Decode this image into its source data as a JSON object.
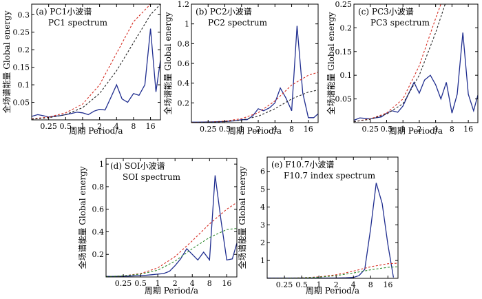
{
  "figure": {
    "xlabel": "周期 Period/a",
    "ylabel": "全场谱能量 Global energy"
  },
  "colors": {
    "frame": "#000000",
    "spectrum": "#1f2d8f",
    "red_dash": "#d62b20",
    "black_dash": "#222222",
    "green_dash": "#2d8a2d"
  },
  "chart_data": [
    {
      "id": "a",
      "type": "line",
      "annotation_1": "(a) PC1小波谱",
      "annotation_2": "PC1 spectrum",
      "x_scale": "log2",
      "xlim": [
        0.125,
        24
      ],
      "ylim": [
        0,
        0.33
      ],
      "x_ticks": [
        0.25,
        0.5,
        1,
        2,
        4,
        8,
        16
      ],
      "x_tick_labels": [
        "0.25",
        "0.5",
        "1",
        "2",
        "4",
        "8",
        "16"
      ],
      "y_ticks": [
        0.05,
        0.1,
        0.15,
        0.2,
        0.25,
        0.3
      ],
      "y_tick_labels": [
        "0.05",
        "0.1",
        "0.15",
        "0.2",
        "0.25",
        "0.3"
      ],
      "series": [
        {
          "style": "solid",
          "color": "#1f2d8f",
          "x": [
            0.125,
            0.16,
            0.2,
            0.25,
            0.31,
            0.4,
            0.5,
            0.63,
            0.8,
            1,
            1.26,
            1.6,
            2,
            2.5,
            3.2,
            4,
            5,
            6.3,
            8,
            10,
            12.7,
            16,
            20,
            24
          ],
          "y": [
            0.01,
            0.015,
            0.012,
            0.008,
            0.01,
            0.012,
            0.015,
            0.018,
            0.022,
            0.02,
            0.015,
            0.025,
            0.03,
            0.028,
            0.065,
            0.1,
            0.06,
            0.05,
            0.075,
            0.07,
            0.1,
            0.26,
            0.08,
            0.17
          ]
        },
        {
          "style": "dashed",
          "color": "#d62b20",
          "x": [
            0.125,
            0.25,
            0.5,
            1,
            2,
            4,
            8,
            16
          ],
          "y": [
            0.003,
            0.008,
            0.02,
            0.045,
            0.1,
            0.19,
            0.28,
            0.33
          ]
        },
        {
          "style": "dashed",
          "color": "#222222",
          "x": [
            0.125,
            0.25,
            0.5,
            1,
            2,
            4,
            8,
            16,
            24
          ],
          "y": [
            0.002,
            0.006,
            0.015,
            0.035,
            0.075,
            0.14,
            0.22,
            0.3,
            0.33
          ]
        }
      ]
    },
    {
      "id": "b",
      "type": "line",
      "annotation_1": "(b) PC2小波谱",
      "annotation_2": "PC2 spectrum",
      "x_scale": "log2",
      "xlim": [
        0.125,
        24
      ],
      "ylim": [
        0,
        1.2
      ],
      "x_ticks": [
        0.25,
        0.5,
        1,
        2,
        4,
        8,
        16
      ],
      "x_tick_labels": [
        "0.25",
        "0.5",
        "1",
        "2",
        "4",
        "8",
        "16"
      ],
      "y_ticks": [
        0.2,
        0.4,
        0.6,
        0.8,
        1,
        1.2
      ],
      "y_tick_labels": [
        "0.2",
        "0.4",
        "0.6",
        "0.8",
        "1",
        "1.2"
      ],
      "series": [
        {
          "style": "solid",
          "color": "#1f2d8f",
          "x": [
            0.125,
            0.16,
            0.2,
            0.25,
            0.31,
            0.4,
            0.5,
            0.63,
            0.8,
            1,
            1.26,
            1.6,
            2,
            2.5,
            3.2,
            4,
            5,
            6.3,
            8,
            10,
            12.7,
            16,
            20,
            24
          ],
          "y": [
            0.005,
            0.005,
            0.006,
            0.007,
            0.008,
            0.01,
            0.012,
            0.015,
            0.02,
            0.03,
            0.03,
            0.07,
            0.14,
            0.12,
            0.15,
            0.2,
            0.35,
            0.25,
            0.12,
            0.98,
            0.3,
            0.05,
            0.05,
            0.09
          ]
        },
        {
          "style": "dashed",
          "color": "#d62b20",
          "x": [
            0.125,
            0.25,
            0.5,
            1,
            2,
            4,
            8,
            16,
            24
          ],
          "y": [
            0.002,
            0.005,
            0.015,
            0.04,
            0.1,
            0.22,
            0.38,
            0.48,
            0.51
          ]
        },
        {
          "style": "dashed",
          "color": "#222222",
          "x": [
            0.125,
            0.25,
            0.5,
            1,
            2,
            4,
            8,
            16,
            24
          ],
          "y": [
            0.001,
            0.004,
            0.01,
            0.025,
            0.065,
            0.14,
            0.24,
            0.31,
            0.33
          ]
        }
      ]
    },
    {
      "id": "c",
      "type": "line",
      "annotation_1": "(c) PC3小波谱",
      "annotation_2": "PC3 spectrum",
      "x_scale": "log2",
      "xlim": [
        0.125,
        24
      ],
      "ylim": [
        0,
        0.25
      ],
      "x_ticks": [
        0.25,
        0.5,
        1,
        2,
        4,
        8,
        16
      ],
      "x_tick_labels": [
        "0.25",
        "0.5",
        "1",
        "2",
        "4",
        "8",
        "16"
      ],
      "y_ticks": [
        0.05,
        0.1,
        0.15,
        0.2,
        0.25
      ],
      "y_tick_labels": [
        "0.05",
        "0.1",
        "0.15",
        "0.2",
        "0.25"
      ],
      "series": [
        {
          "style": "solid",
          "color": "#1f2d8f",
          "x": [
            0.125,
            0.16,
            0.2,
            0.25,
            0.31,
            0.4,
            0.5,
            0.63,
            0.8,
            1,
            1.26,
            1.6,
            2,
            2.5,
            3.2,
            4,
            5,
            6.3,
            8,
            10,
            12.7,
            16,
            20,
            24
          ],
          "y": [
            0.005,
            0.01,
            0.009,
            0.008,
            0.01,
            0.012,
            0.02,
            0.025,
            0.022,
            0.035,
            0.06,
            0.085,
            0.062,
            0.09,
            0.1,
            0.08,
            0.05,
            0.085,
            0.02,
            0.06,
            0.19,
            0.06,
            0.025,
            0.058
          ]
        },
        {
          "style": "dashed",
          "color": "#d62b20",
          "x": [
            0.125,
            0.25,
            0.5,
            1,
            2,
            4,
            5
          ],
          "y": [
            0.002,
            0.008,
            0.02,
            0.05,
            0.12,
            0.22,
            0.25
          ]
        },
        {
          "style": "dashed",
          "color": "#222222",
          "x": [
            0.125,
            0.25,
            0.5,
            1,
            2,
            4,
            6
          ],
          "y": [
            0.002,
            0.007,
            0.018,
            0.04,
            0.1,
            0.19,
            0.25
          ]
        }
      ]
    },
    {
      "id": "d",
      "type": "line",
      "annotation_1": "(d) SOI小波谱",
      "annotation_2": "SOI spectrum",
      "x_scale": "log2",
      "xlim": [
        0.125,
        24
      ],
      "ylim": [
        0,
        1.05
      ],
      "x_ticks": [
        0.25,
        0.5,
        1,
        2,
        4,
        8,
        16
      ],
      "x_tick_labels": [
        "0.25",
        "0.5",
        "1",
        "2",
        "4",
        "8",
        "16"
      ],
      "y_ticks": [
        0.2,
        0.4,
        0.6,
        0.8,
        1
      ],
      "y_tick_labels": [
        "0.2",
        "0.4",
        "0.6",
        "0.8",
        "1"
      ],
      "series": [
        {
          "style": "solid",
          "color": "#1f2d8f",
          "x": [
            0.125,
            0.16,
            0.2,
            0.25,
            0.31,
            0.4,
            0.5,
            0.63,
            0.8,
            1,
            1.26,
            1.6,
            2,
            2.5,
            3.2,
            4,
            5,
            6.3,
            8,
            10,
            12.7,
            16,
            20,
            24
          ],
          "y": [
            0.005,
            0.005,
            0.006,
            0.007,
            0.008,
            0.01,
            0.012,
            0.015,
            0.02,
            0.025,
            0.03,
            0.05,
            0.1,
            0.16,
            0.25,
            0.2,
            0.15,
            0.22,
            0.15,
            0.9,
            0.5,
            0.15,
            0.16,
            0.3
          ]
        },
        {
          "style": "dashed",
          "color": "#d62b20",
          "x": [
            0.125,
            0.25,
            0.5,
            1,
            2,
            4,
            8,
            16,
            24
          ],
          "y": [
            0.003,
            0.01,
            0.03,
            0.08,
            0.18,
            0.32,
            0.47,
            0.6,
            0.66
          ]
        },
        {
          "style": "dashed",
          "color": "#2d8a2d",
          "x": [
            0.125,
            0.25,
            0.5,
            1,
            2,
            4,
            8,
            16,
            24
          ],
          "y": [
            0.003,
            0.01,
            0.025,
            0.06,
            0.14,
            0.25,
            0.35,
            0.42,
            0.43
          ]
        }
      ]
    },
    {
      "id": "e",
      "type": "line",
      "annotation_1": "(e) F10.7小波谱",
      "annotation_2": "F10.7 index spectrum",
      "x_scale": "log2",
      "xlim": [
        0.125,
        24
      ],
      "ylim": [
        0,
        6.8
      ],
      "x_ticks": [
        0.25,
        0.5,
        1,
        2,
        4,
        8,
        16
      ],
      "x_tick_labels": [
        "0.25",
        "0.5",
        "1",
        "2",
        "4",
        "8",
        "16"
      ],
      "y_ticks": [
        1,
        2,
        3,
        4,
        5,
        6
      ],
      "y_tick_labels": [
        "1",
        "2",
        "3",
        "4",
        "5",
        "6"
      ],
      "series": [
        {
          "style": "solid",
          "color": "#1f2d8f",
          "x": [
            0.125,
            0.25,
            0.5,
            1,
            2,
            3,
            4,
            5,
            6.3,
            8,
            10,
            12.7,
            16,
            20
          ],
          "y": [
            0.02,
            0.02,
            0.02,
            0.02,
            0.02,
            0.03,
            0.05,
            0.15,
            0.5,
            2.8,
            5.35,
            4.2,
            1.9,
            0.05
          ]
        },
        {
          "style": "dashed",
          "color": "#d62b20",
          "x": [
            0.125,
            0.25,
            0.5,
            1,
            2,
            4,
            8,
            16,
            24
          ],
          "y": [
            0.005,
            0.01,
            0.03,
            0.08,
            0.2,
            0.4,
            0.65,
            0.82,
            0.85
          ]
        },
        {
          "style": "dashed",
          "color": "#2d8a2d",
          "x": [
            0.125,
            0.25,
            0.5,
            1,
            2,
            4,
            8,
            16,
            24
          ],
          "y": [
            0.005,
            0.01,
            0.025,
            0.06,
            0.15,
            0.3,
            0.48,
            0.62,
            0.65
          ]
        }
      ]
    }
  ]
}
